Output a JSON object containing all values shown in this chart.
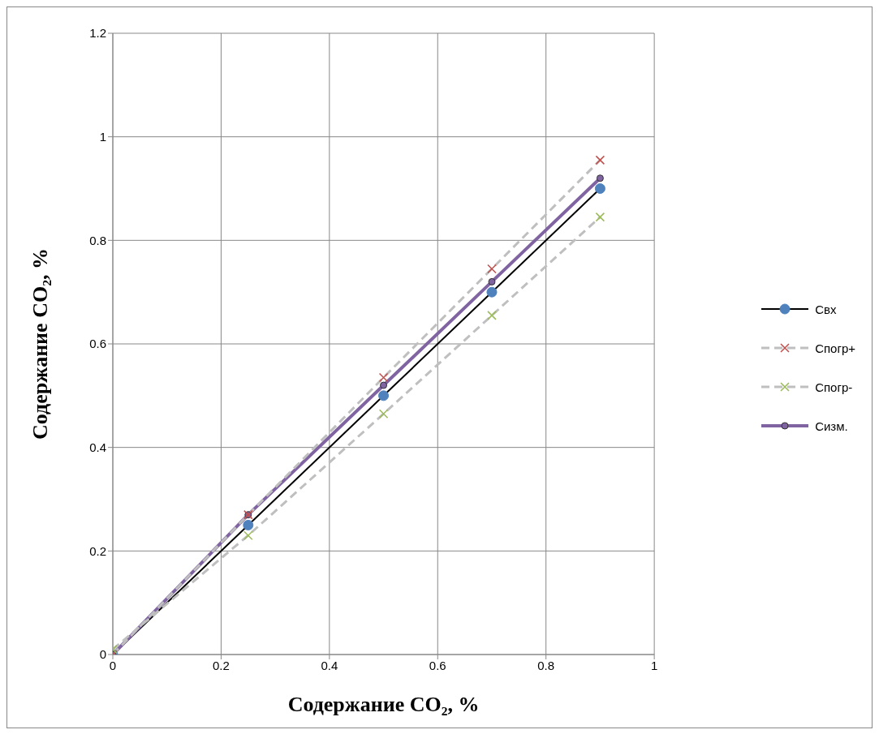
{
  "chart_data": {
    "type": "line",
    "xlabel": "Содержание CO₂, %",
    "ylabel": "Содержание CO₂, %",
    "x": [
      0,
      0.25,
      0.5,
      0.7,
      0.9
    ],
    "series": [
      {
        "name": "Свх",
        "color": "#000000",
        "values": [
          0,
          0.25,
          0.5,
          0.7,
          0.9
        ],
        "marker": "circle",
        "line_style": "solid"
      },
      {
        "name": "Спогр+",
        "color": "#c0504d",
        "values": [
          0,
          0.27,
          0.535,
          0.745,
          0.955
        ],
        "marker": "cross",
        "line_style": "dashed"
      },
      {
        "name": "Спогр-",
        "color": "#9bbb59",
        "values": [
          0.01,
          0.23,
          0.465,
          0.655,
          0.845
        ],
        "marker": "cross",
        "line_style": "dashed"
      },
      {
        "name": "Сизм.",
        "color": "#8064a2",
        "values": [
          0,
          0.27,
          0.52,
          0.72,
          0.92
        ],
        "marker": "circle",
        "line_style": "solid"
      }
    ],
    "xlim": [
      0,
      1
    ],
    "xticks": [
      0,
      0.2,
      0.4,
      0.6,
      0.8,
      1
    ],
    "ylim": [
      0,
      1.2
    ],
    "yticks": [
      0,
      0.2,
      0.4,
      0.6,
      0.8,
      1,
      1.2
    ],
    "grid": true,
    "legend": "right"
  }
}
